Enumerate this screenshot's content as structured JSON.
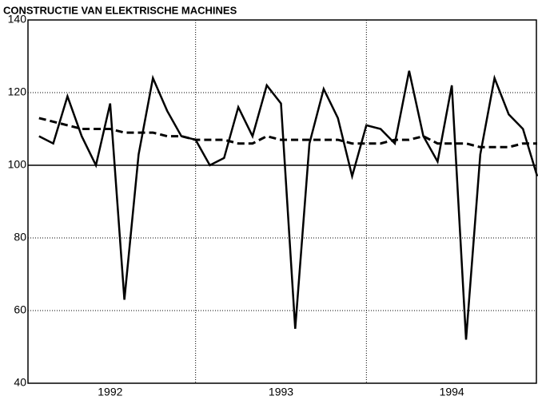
{
  "chart_data": {
    "type": "line",
    "title": "CONSTRUCTIE VAN ELEKTRISCHE MACHINES",
    "x": [
      1,
      2,
      3,
      4,
      5,
      6,
      7,
      8,
      9,
      10,
      11,
      12,
      13,
      14,
      15,
      16,
      17,
      18,
      19,
      20,
      21,
      22,
      23,
      24,
      25,
      26,
      27,
      28,
      29,
      30,
      31,
      32,
      33,
      34,
      35,
      36
    ],
    "xlim": [
      0,
      36
    ],
    "xticks": [
      {
        "value": 6,
        "label": "1992"
      },
      {
        "value": 18,
        "label": "1993"
      },
      {
        "value": 30,
        "label": "1994"
      }
    ],
    "xgrid": [
      12,
      24
    ],
    "ylim": [
      40,
      140
    ],
    "yticks": [
      40,
      60,
      80,
      100,
      120,
      140
    ],
    "reference_line": 100,
    "grid": true,
    "series": [
      {
        "color": "#000000",
        "style": "solid",
        "values": [
          108,
          106,
          119,
          108,
          100,
          117,
          63,
          103,
          124,
          115,
          108,
          107,
          100,
          102,
          116,
          108,
          122,
          117,
          55,
          106,
          121,
          113,
          97,
          111,
          110,
          106,
          126,
          108,
          101,
          122,
          52,
          103,
          124,
          114,
          110,
          97
        ]
      },
      {
        "color": "#000000",
        "style": "dashed",
        "values": [
          113,
          112,
          111,
          110,
          110,
          110,
          109,
          109,
          109,
          108,
          108,
          107,
          107,
          107,
          106,
          106,
          108,
          107,
          107,
          107,
          107,
          107,
          106,
          106,
          106,
          107,
          107,
          108,
          106,
          106,
          106,
          105,
          105,
          105,
          106,
          106
        ]
      }
    ]
  }
}
